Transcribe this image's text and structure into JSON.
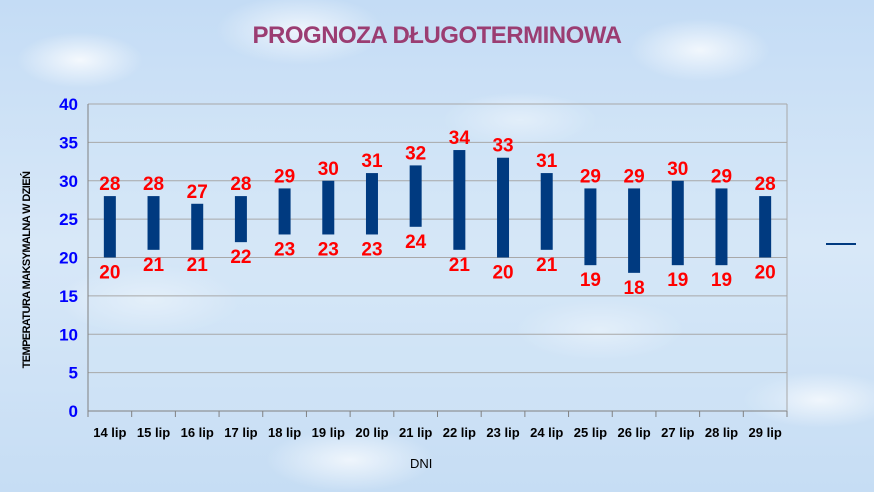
{
  "chart_data": {
    "type": "bar",
    "subtype": "floating-range",
    "title": "PROGNOZA DŁUGOTERMINOWA",
    "xlabel": "DNI",
    "ylabel": "TEMPERATURA MAKSYMALNA W DZIEŃ",
    "ylim": [
      0,
      40
    ],
    "yticks": [
      0,
      5,
      10,
      15,
      20,
      25,
      30,
      35,
      40
    ],
    "grid": true,
    "categories": [
      "14 lip",
      "15 lip",
      "16 lip",
      "17 lip",
      "18 lip",
      "19 lip",
      "20 lip",
      "21 lip",
      "22 lip",
      "23 lip",
      "24 lip",
      "25 lip",
      "26 lip",
      "27 lip",
      "28 lip",
      "29 lip"
    ],
    "series": [
      {
        "values_high": [
          28,
          28,
          27,
          28,
          29,
          30,
          31,
          32,
          34,
          33,
          31,
          29,
          29,
          30,
          29,
          28
        ]
      },
      {
        "values_low": [
          20,
          21,
          21,
          22,
          23,
          23,
          23,
          24,
          21,
          20,
          21,
          19,
          18,
          19,
          19,
          20
        ]
      }
    ],
    "colors": {
      "bar": "#003a80",
      "label": "#ff0000",
      "title": "#9b3d72",
      "axis": "#0000ff",
      "grid": "#a8a8a8"
    }
  }
}
